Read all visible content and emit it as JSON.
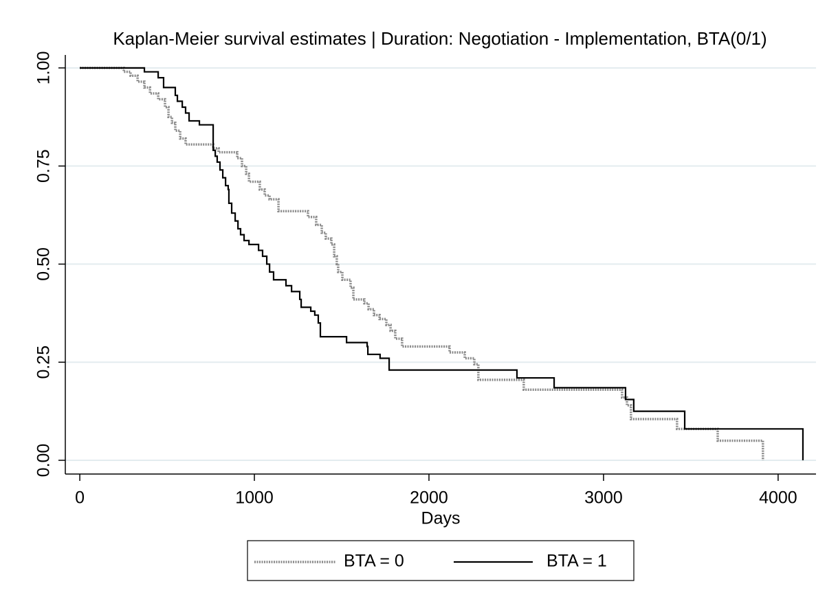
{
  "chart_data": {
    "type": "line",
    "step": true,
    "title": "Kaplan-Meier survival estimates | Duration: Negotiation - Implementation, BTA(0/1)",
    "xlabel": "Days",
    "xlim": [
      -83,
      4217
    ],
    "ylim": [
      -0.035,
      1.033
    ],
    "xticks": [
      0,
      1000,
      2000,
      3000,
      4000
    ],
    "yticks": [
      {
        "value": 0,
        "label": "0.00"
      },
      {
        "value": 0.25,
        "label": "0.25"
      },
      {
        "value": 0.5,
        "label": "0.50"
      },
      {
        "value": 0.75,
        "label": "0.75"
      },
      {
        "value": 1,
        "label": "1.00"
      }
    ],
    "grid": true,
    "legend": "bottom",
    "series": [
      {
        "name": "BTA = 0",
        "color": "#8a8a8a",
        "dash": true,
        "x": [
          0,
          252,
          291,
          331,
          370,
          402,
          449,
          488,
          508,
          528,
          547,
          575,
          606,
          764,
          795,
          902,
          929,
          953,
          969,
          1031,
          1059,
          1087,
          1138,
          1307,
          1354,
          1386,
          1409,
          1441,
          1457,
          1472,
          1480,
          1504,
          1551,
          1567,
          1630,
          1654,
          1685,
          1717,
          1756,
          1780,
          1807,
          1846,
          2118,
          2205,
          2260,
          2283,
          2543,
          3106,
          3134,
          3157,
          3421,
          3654,
          3913
        ],
        "values": [
          1,
          0.99,
          0.98,
          0.965,
          0.95,
          0.935,
          0.92,
          0.9,
          0.875,
          0.86,
          0.84,
          0.82,
          0.805,
          0.795,
          0.785,
          0.77,
          0.75,
          0.73,
          0.71,
          0.69,
          0.675,
          0.665,
          0.635,
          0.62,
          0.6,
          0.58,
          0.565,
          0.55,
          0.52,
          0.5,
          0.48,
          0.46,
          0.44,
          0.41,
          0.4,
          0.385,
          0.37,
          0.36,
          0.345,
          0.33,
          0.31,
          0.29,
          0.275,
          0.26,
          0.245,
          0.205,
          0.18,
          0.16,
          0.14,
          0.105,
          0.08,
          0.05,
          0
        ]
      },
      {
        "name": "BTA = 1",
        "color": "#000000",
        "dash": false,
        "x": [
          0,
          370,
          449,
          480,
          547,
          559,
          587,
          606,
          626,
          685,
          764,
          776,
          787,
          803,
          819,
          835,
          850,
          854,
          870,
          890,
          906,
          921,
          941,
          969,
          1024,
          1047,
          1071,
          1087,
          1110,
          1181,
          1213,
          1260,
          1268,
          1323,
          1346,
          1366,
          1378,
          1528,
          1646,
          1650,
          1720,
          1772,
          2504,
          2717,
          3126,
          3173,
          3465,
          4142
        ],
        "values": [
          1,
          0.99,
          0.975,
          0.95,
          0.93,
          0.915,
          0.9,
          0.885,
          0.865,
          0.855,
          0.79,
          0.775,
          0.76,
          0.74,
          0.72,
          0.7,
          0.69,
          0.655,
          0.63,
          0.61,
          0.59,
          0.575,
          0.56,
          0.55,
          0.535,
          0.52,
          0.5,
          0.48,
          0.46,
          0.445,
          0.43,
          0.41,
          0.39,
          0.38,
          0.37,
          0.35,
          0.315,
          0.3,
          0.29,
          0.27,
          0.26,
          0.23,
          0.21,
          0.185,
          0.155,
          0.125,
          0.08,
          0
        ]
      }
    ]
  }
}
